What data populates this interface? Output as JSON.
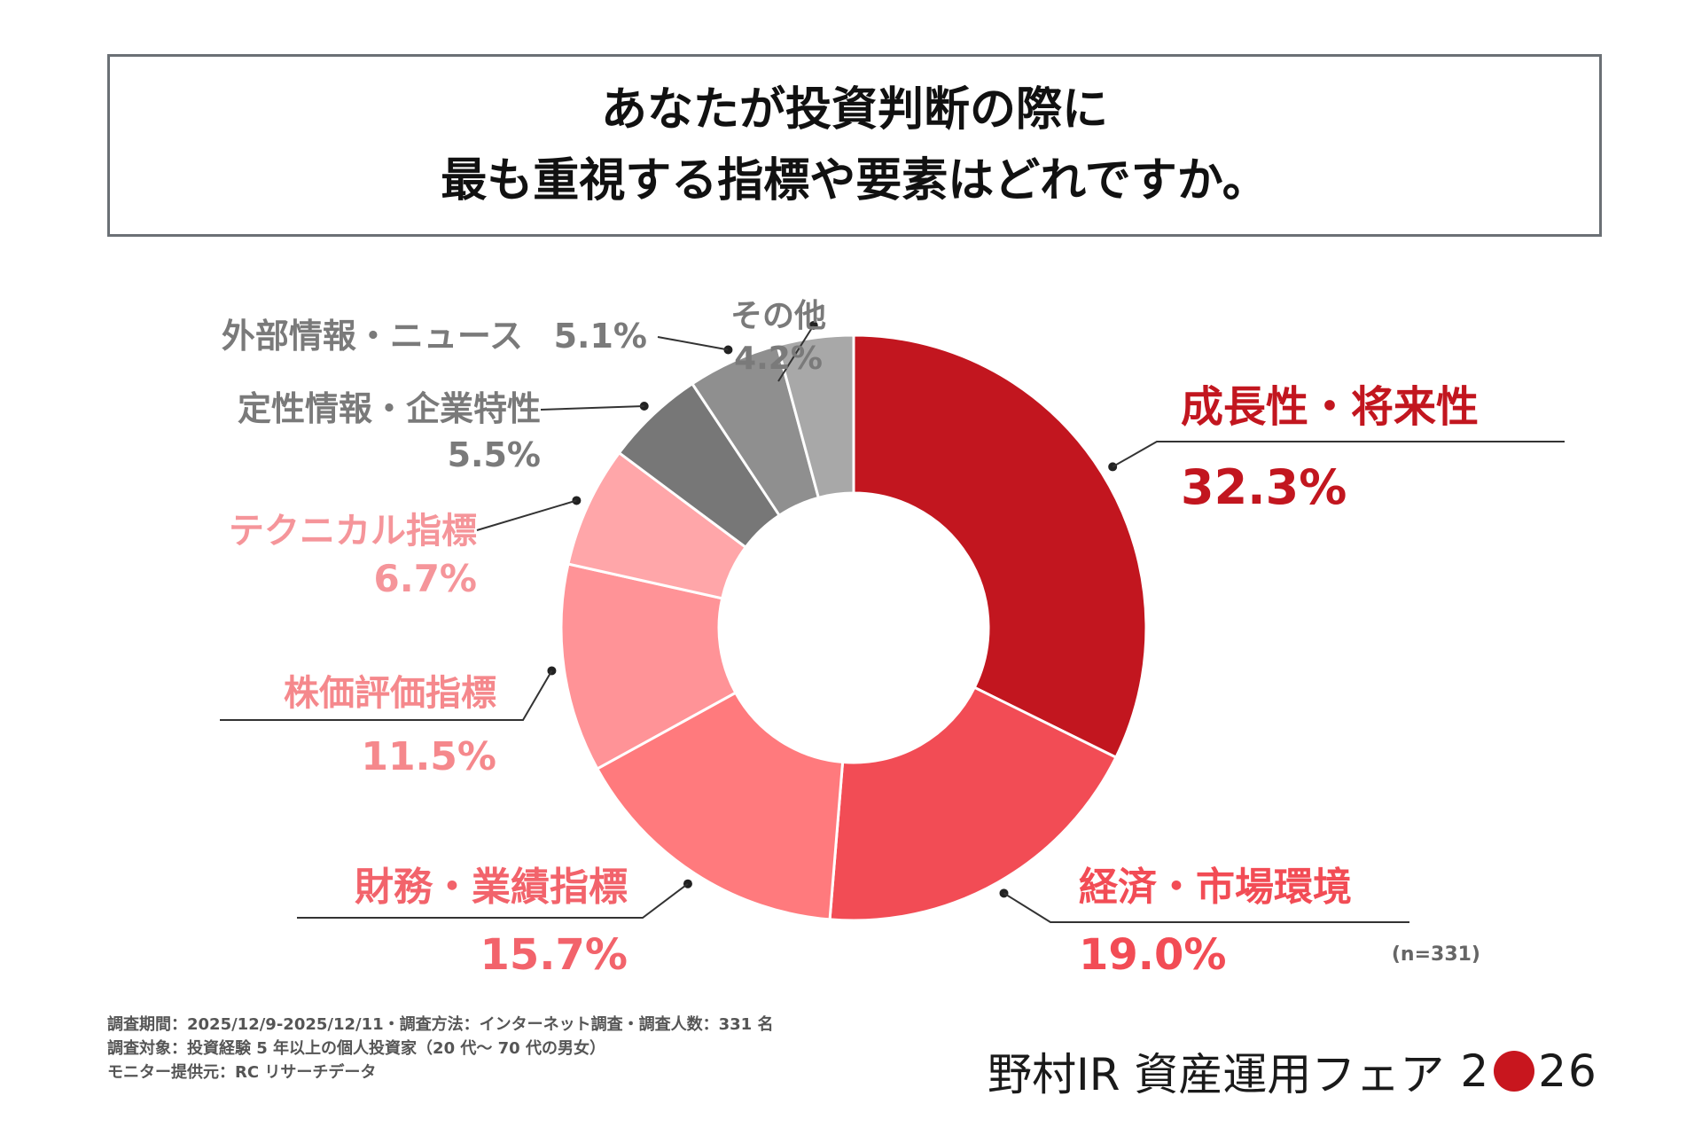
{
  "title": {
    "line1": "あなたが投資判断の際に",
    "line2": "最も重視する指標や要素はどれですか。"
  },
  "chart_data": {
    "type": "pie",
    "donut": true,
    "sample_note": "(n=331)",
    "slices": [
      {
        "label": "成長性・将来性",
        "value": 32.3,
        "value_label": "32.3%",
        "color": "#c2161f",
        "label_color": "#c2161f"
      },
      {
        "label": "経済・市場環境",
        "value": 19.0,
        "value_label": "19.0%",
        "color": "#f24c55",
        "label_color": "#f24c55"
      },
      {
        "label": "財務・業績指標",
        "value": 15.7,
        "value_label": "15.7%",
        "color": "#ff7a7d",
        "label_color": "#f2636b"
      },
      {
        "label": "株価評価指標",
        "value": 11.5,
        "value_label": "11.5%",
        "color": "#ff9397",
        "label_color": "#f5888c"
      },
      {
        "label": "テクニカル指標",
        "value": 6.7,
        "value_label": "6.7%",
        "color": "#ffa6a9",
        "label_color": "#f5959a"
      },
      {
        "label": "定性情報・企業特性",
        "value": 5.5,
        "value_label": "5.5%",
        "color": "#777777",
        "label_color": "#7a7a7a"
      },
      {
        "label": "外部情報・ニュース",
        "value": 5.1,
        "value_label": "5.1%",
        "color": "#8f8f8f",
        "label_color": "#7a7a7a"
      },
      {
        "label": "その他",
        "value": 4.2,
        "value_label": "4.2%",
        "color": "#a8a8a8",
        "label_color": "#7a7a7a"
      }
    ]
  },
  "footer": {
    "line1": "調査期間：2025/12/9-2025/12/11・調査方法：インターネット調査・調査人数：331 名",
    "line2": "調査対象：投資経験 5 年以上の個人投資家（20 代〜 70 代の男女）",
    "line3": "モニター提供元：RC リサーチデータ"
  },
  "brand": {
    "name": "野村IR 資産運用フェア",
    "year_left": "2",
    "year_right": "26",
    "dot_color": "#c8161e"
  }
}
